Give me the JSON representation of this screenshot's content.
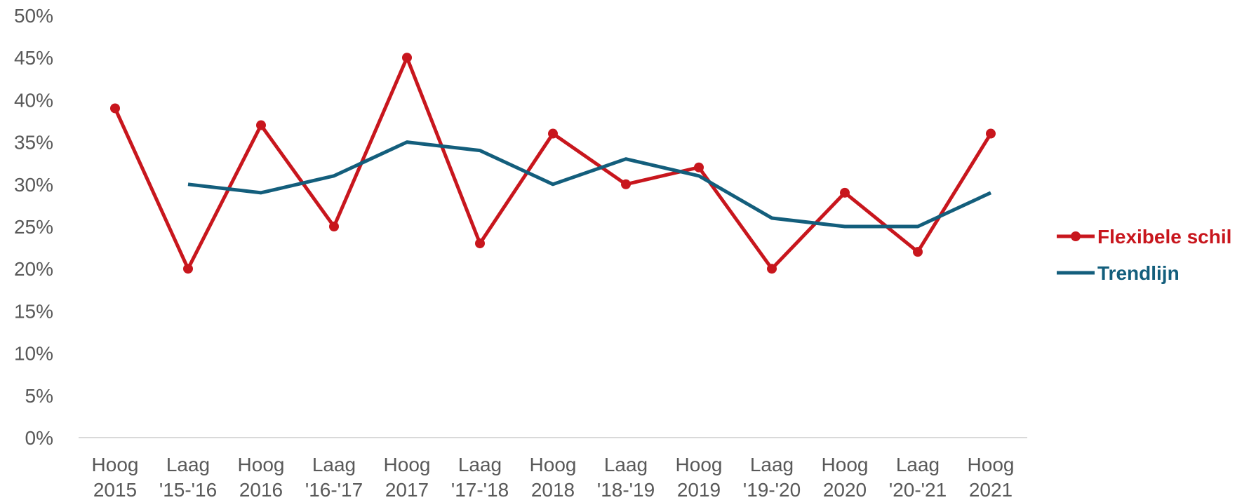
{
  "chart_data": {
    "type": "line",
    "categories": [
      [
        "Hoog",
        "2015"
      ],
      [
        "Laag",
        "'15-'16"
      ],
      [
        "Hoog",
        "2016"
      ],
      [
        "Laag",
        "'16-'17"
      ],
      [
        "Hoog",
        "2017"
      ],
      [
        "Laag",
        "'17-'18"
      ],
      [
        "Hoog",
        "2018"
      ],
      [
        "Laag",
        "'18-'19"
      ],
      [
        "Hoog",
        "2019"
      ],
      [
        "Laag",
        "'19-'20"
      ],
      [
        "Hoog",
        "2020"
      ],
      [
        "Laag",
        "'20-'21"
      ],
      [
        "Hoog",
        "2021"
      ]
    ],
    "series": [
      {
        "name": "Flexibele schil",
        "color": "#c8161d",
        "markers": true,
        "values": [
          39,
          20,
          37,
          25,
          45,
          23,
          36,
          30,
          32,
          20,
          29,
          22,
          36
        ]
      },
      {
        "name": "Trendlijn",
        "color": "#135e7c",
        "markers": false,
        "values": [
          null,
          30,
          29,
          31,
          35,
          34,
          30,
          33,
          31,
          26,
          25,
          25,
          29
        ]
      }
    ],
    "y_ticks": [
      "0%",
      "5%",
      "10%",
      "15%",
      "20%",
      "25%",
      "30%",
      "35%",
      "40%",
      "45%",
      "50%"
    ],
    "ylim": [
      0,
      50
    ],
    "y_unit": "%",
    "grid": false,
    "legend_position": "right"
  }
}
